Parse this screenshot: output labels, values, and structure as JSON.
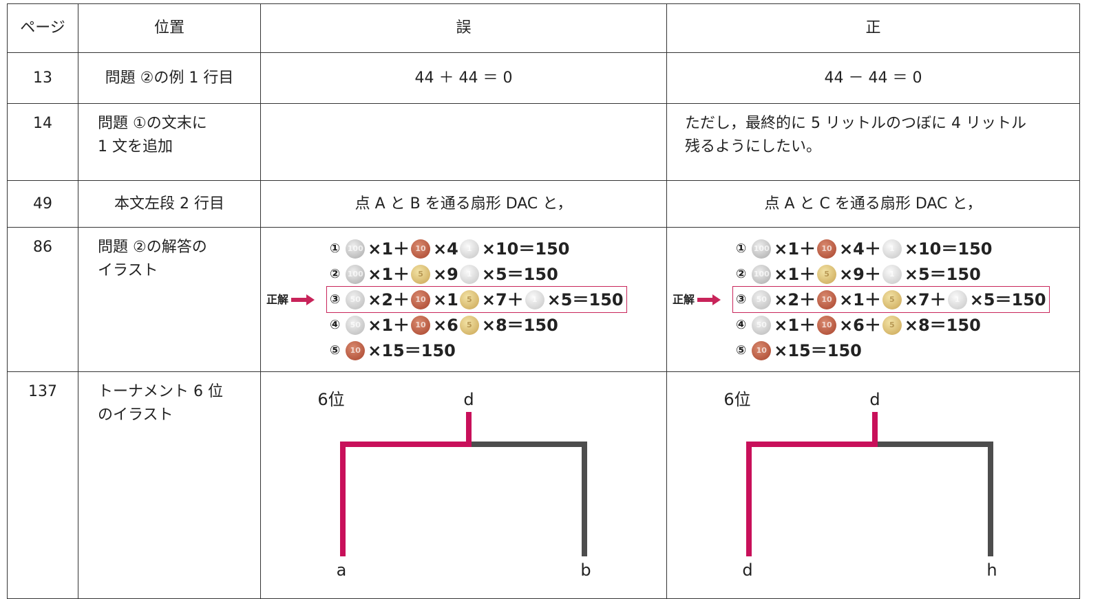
{
  "table": {
    "header": [
      "ページ",
      "位置",
      "誤",
      "正"
    ],
    "rows": [
      {
        "page": "13",
        "location": "問題 ②の例 1 行目",
        "wrong": "44 ＋ 44 ＝ 0",
        "right": "44 － 44 ＝ 0"
      },
      {
        "page": "14",
        "location": "問題 ①の文末に\n1 文を追加",
        "right": "ただし，最終的に 5 リットルのつぼに 4 リットル\n残るようにしたい。"
      },
      {
        "page": "49",
        "location": "本文左段 2 行目",
        "wrong": "点 A と B を通る扇形 DAC と，",
        "right": "点 A と C を通る扇形 DAC と，"
      },
      {
        "page": "86",
        "location": "問題 ②の解答の\nイラスト",
        "wrong": {
          "lines": [
            {
              "num": "①",
              "parts": [
                {
                  "coin": "100",
                  "text": "×1＋"
                },
                {
                  "coin": "10",
                  "text": "×4"
                },
                {
                  "coin": "1",
                  "text": "×10＝150"
                }
              ]
            },
            {
              "num": "②",
              "parts": [
                {
                  "coin": "100",
                  "text": "×1＋"
                },
                {
                  "coin": "5",
                  "text": "×9"
                },
                {
                  "coin": "1",
                  "text": "×5＝150"
                }
              ]
            },
            {
              "num": "③",
              "note": "正解",
              "parts": [
                {
                  "coin": "50",
                  "text": "×2＋"
                },
                {
                  "coin": "10",
                  "text": "×1"
                },
                {
                  "coin": "5",
                  "text": "×7＋"
                },
                {
                  "coin": "1",
                  "text": "×5＝150"
                }
              ]
            },
            {
              "num": "④",
              "parts": [
                {
                  "coin": "50",
                  "text": "×1＋"
                },
                {
                  "coin": "10",
                  "text": "×6"
                },
                {
                  "coin": "5",
                  "text": "×8＝150"
                }
              ]
            },
            {
              "num": "⑤",
              "parts": [
                {
                  "coin": "10",
                  "text": "×15＝150"
                }
              ]
            }
          ]
        },
        "right": {
          "lines": [
            {
              "num": "①",
              "parts": [
                {
                  "coin": "100",
                  "text": "×1＋"
                },
                {
                  "coin": "10",
                  "text": "×4＋"
                },
                {
                  "coin": "1",
                  "text": "×10＝150"
                }
              ]
            },
            {
              "num": "②",
              "parts": [
                {
                  "coin": "100",
                  "text": "×1＋"
                },
                {
                  "coin": "5",
                  "text": "×9＋"
                },
                {
                  "coin": "1",
                  "text": "×5＝150"
                }
              ]
            },
            {
              "num": "③",
              "note": "正解",
              "parts": [
                {
                  "coin": "50",
                  "text": "×2＋"
                },
                {
                  "coin": "10",
                  "text": "×1＋"
                },
                {
                  "coin": "5",
                  "text": "×7＋"
                },
                {
                  "coin": "1",
                  "text": "×5＝150"
                }
              ]
            },
            {
              "num": "④",
              "parts": [
                {
                  "coin": "50",
                  "text": "×1＋"
                },
                {
                  "coin": "10",
                  "text": "×6＋"
                },
                {
                  "coin": "5",
                  "text": "×8＝150"
                }
              ]
            },
            {
              "num": "⑤",
              "parts": [
                {
                  "coin": "10",
                  "text": "×15＝150"
                }
              ]
            }
          ]
        }
      },
      {
        "page": "137",
        "location": "トーナメント 6 位\nのイラスト",
        "wrong": {
          "rank": "6位",
          "top": "d",
          "left": "a",
          "right": "b"
        },
        "right": {
          "rank": "6位",
          "top": "d",
          "left": "d",
          "right": "h"
        }
      }
    ]
  }
}
